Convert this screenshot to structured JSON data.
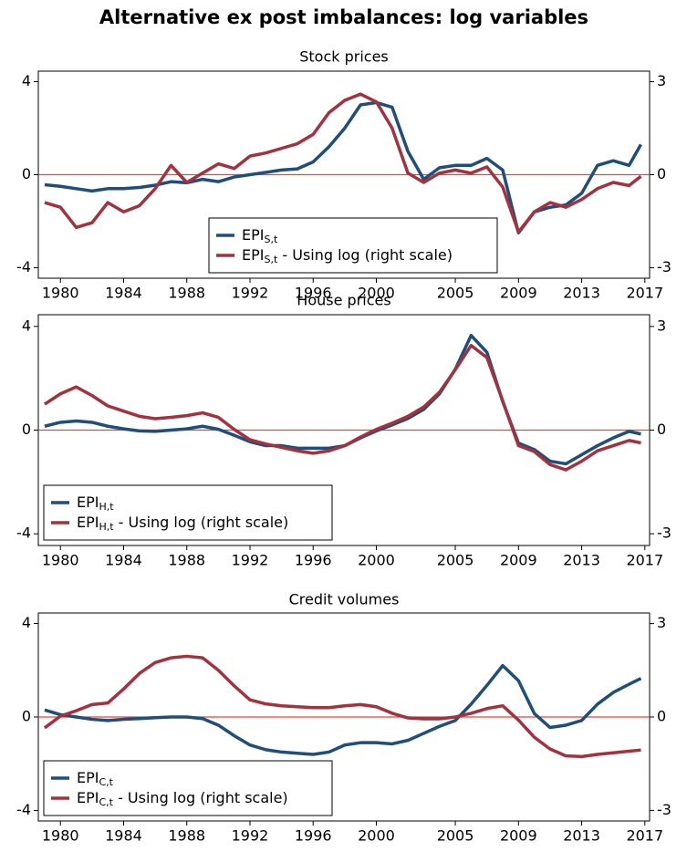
{
  "title": "Alternative ex post imbalances: log variables",
  "chart_data": [
    {
      "type": "line",
      "title": "Stock prices",
      "legend": "lower center",
      "reference_line": 0,
      "reference_color": "#e8443a",
      "x": [
        1979,
        1980,
        1981,
        1982,
        1983,
        1984,
        1985,
        1986,
        1987,
        1988,
        1989,
        1990,
        1991,
        1992,
        1993,
        1994,
        1995,
        1996,
        1997,
        1998,
        1999,
        2000,
        2001,
        2002,
        2003,
        2004,
        2005,
        2006,
        2007,
        2008,
        2009,
        2010,
        2011,
        2012,
        2013,
        2014,
        2015,
        2016,
        2016.75
      ],
      "xlim": [
        1978.6,
        2017.3
      ],
      "xticks": [
        1980,
        1984,
        1988,
        1992,
        1996,
        2000,
        2005,
        2009,
        2013,
        2017
      ],
      "ylim": [
        -4.45,
        4.45
      ],
      "yticks": [
        -4,
        0,
        4
      ],
      "y2lim": [
        -3.34,
        3.34
      ],
      "y2ticks": [
        -3,
        0,
        3
      ],
      "series": [
        {
          "name": "EPIS,t",
          "color": "#1f4e79",
          "values": [
            -0.43,
            -0.5,
            -0.6,
            -0.7,
            -0.6,
            -0.6,
            -0.55,
            -0.45,
            -0.3,
            -0.35,
            -0.2,
            -0.3,
            -0.1,
            0,
            0.1,
            0.2,
            0.25,
            0.55,
            1.2,
            2.0,
            3.0,
            3.1,
            2.9,
            1.0,
            -0.2,
            0.3,
            0.4,
            0.4,
            0.7,
            0.2,
            -2.5,
            -1.6,
            -1.4,
            -1.3,
            -0.8,
            0.4,
            0.6,
            0.4,
            1.3
          ]
        },
        {
          "name": "EPIS,t - Using log (right scale)",
          "color": "#a3323f",
          "axis": "y2",
          "values": [
            -0.9,
            -1.05,
            -1.7,
            -1.55,
            -0.9,
            -1.2,
            -1.0,
            -0.45,
            0.3,
            -0.25,
            0.05,
            0.35,
            0.2,
            0.6,
            0.7,
            0.85,
            1.0,
            1.3,
            2.0,
            2.4,
            2.6,
            2.35,
            1.5,
            0.05,
            -0.25,
            0.05,
            0.15,
            0.05,
            0.25,
            -0.4,
            -1.85,
            -1.2,
            -0.9,
            -1.05,
            -0.8,
            -0.45,
            -0.25,
            -0.35,
            -0.05
          ]
        }
      ]
    },
    {
      "type": "line",
      "title": "House prices",
      "legend": "lower left",
      "reference_line": 0,
      "reference_color": "#e8443a",
      "x": [
        1979,
        1980,
        1981,
        1982,
        1983,
        1984,
        1985,
        1986,
        1987,
        1988,
        1989,
        1990,
        1991,
        1992,
        1993,
        1994,
        1995,
        1996,
        1997,
        1998,
        1999,
        2000,
        2001,
        2002,
        2003,
        2004,
        2005,
        2006,
        2007,
        2008,
        2009,
        2010,
        2011,
        2012,
        2013,
        2014,
        2015,
        2016,
        2016.75
      ],
      "xlim": [
        1978.6,
        2017.3
      ],
      "xticks": [
        1980,
        1984,
        1988,
        1992,
        1996,
        2000,
        2005,
        2009,
        2013,
        2017
      ],
      "ylim": [
        -4.45,
        4.45
      ],
      "yticks": [
        -4,
        0,
        4
      ],
      "y2lim": [
        -3.34,
        3.34
      ],
      "y2ticks": [
        -3,
        0,
        3
      ],
      "series": [
        {
          "name": "EPIH,t",
          "color": "#1f4e79",
          "values": [
            0.15,
            0.3,
            0.35,
            0.3,
            0.15,
            0.05,
            -0.03,
            -0.05,
            0,
            0.05,
            0.15,
            0.03,
            -0.2,
            -0.45,
            -0.6,
            -0.6,
            -0.7,
            -0.7,
            -0.7,
            -0.6,
            -0.3,
            -0.03,
            0.2,
            0.45,
            0.8,
            1.4,
            2.35,
            3.65,
            3.0,
            1.1,
            -0.5,
            -0.75,
            -1.2,
            -1.3,
            -0.95,
            -0.6,
            -0.3,
            -0.05,
            -0.15
          ]
        },
        {
          "name": "EPIH,t - Using log (right scale)",
          "color": "#a3323f",
          "axis": "y2",
          "values": [
            0.75,
            1.05,
            1.25,
            1.0,
            0.7,
            0.55,
            0.4,
            0.33,
            0.37,
            0.42,
            0.5,
            0.37,
            0.02,
            -0.28,
            -0.4,
            -0.5,
            -0.6,
            -0.67,
            -0.6,
            -0.45,
            -0.2,
            0.02,
            0.2,
            0.4,
            0.67,
            1.1,
            1.75,
            2.45,
            2.1,
            0.85,
            -0.45,
            -0.62,
            -1.0,
            -1.15,
            -0.9,
            -0.6,
            -0.45,
            -0.3,
            -0.37
          ]
        }
      ]
    },
    {
      "type": "line",
      "title": "Credit volumes",
      "legend": "lower left",
      "reference_line": 0,
      "reference_color": "#e8443a",
      "x": [
        1979,
        1980,
        1981,
        1982,
        1983,
        1984,
        1985,
        1986,
        1987,
        1988,
        1989,
        1990,
        1991,
        1992,
        1993,
        1994,
        1995,
        1996,
        1997,
        1998,
        1999,
        2000,
        2001,
        2002,
        2003,
        2004,
        2005,
        2006,
        2007,
        2008,
        2009,
        2010,
        2011,
        2012,
        2013,
        2014,
        2015,
        2016,
        2016.75
      ],
      "xlim": [
        1978.6,
        2017.3
      ],
      "xticks": [
        1980,
        1984,
        1988,
        1992,
        1996,
        2000,
        2005,
        2009,
        2013,
        2017
      ],
      "ylim": [
        -4.45,
        4.45
      ],
      "yticks": [
        -4,
        0,
        4
      ],
      "y2lim": [
        -3.34,
        3.34
      ],
      "y2ticks": [
        -3,
        0,
        3
      ],
      "series": [
        {
          "name": "EPIC,t",
          "color": "#1f4e79",
          "values": [
            0.3,
            0.1,
            0,
            -0.1,
            -0.15,
            -0.1,
            -0.07,
            -0.03,
            0,
            0,
            -0.07,
            -0.35,
            -0.8,
            -1.2,
            -1.4,
            -1.5,
            -1.55,
            -1.6,
            -1.5,
            -1.2,
            -1.1,
            -1.1,
            -1.15,
            -1.0,
            -0.7,
            -0.4,
            -0.15,
            0.55,
            1.35,
            2.2,
            1.55,
            0.15,
            -0.45,
            -0.35,
            -0.15,
            0.55,
            1.05,
            1.4,
            1.65
          ]
        },
        {
          "name": "EPIC,t - Using log (right scale)",
          "color": "#a3323f",
          "axis": "y2",
          "values": [
            -0.35,
            0.03,
            0.2,
            0.4,
            0.45,
            0.9,
            1.4,
            1.75,
            1.9,
            1.95,
            1.9,
            1.5,
            1.0,
            0.55,
            0.42,
            0.36,
            0.33,
            0.3,
            0.3,
            0.36,
            0.4,
            0.33,
            0.12,
            -0.03,
            -0.06,
            -0.06,
            0,
            0.12,
            0.27,
            0.36,
            -0.1,
            -0.65,
            -1.03,
            -1.25,
            -1.27,
            -1.2,
            -1.15,
            -1.1,
            -1.06
          ]
        }
      ]
    }
  ]
}
